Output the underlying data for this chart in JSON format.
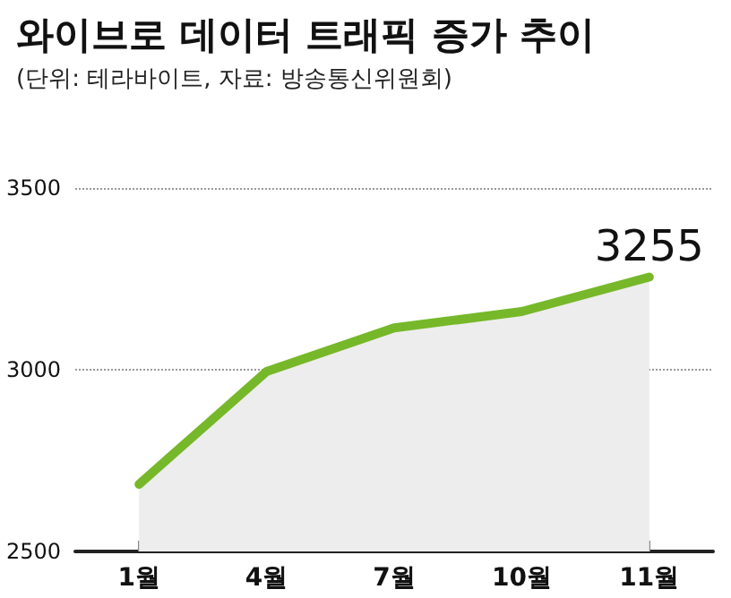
{
  "chart_data": {
    "type": "area",
    "title": "와이브로 데이터 트래픽 증가 추이",
    "subtitle": "(단위: 테라바이트, 자료: 방송통신위원회)",
    "categories": [
      "1월",
      "4월",
      "7월",
      "10월",
      "11월"
    ],
    "series": [
      {
        "color": "#76b82a",
        "values": [
          2685,
          2995,
          3115,
          3160,
          3255
        ],
        "value_labels": [
          null,
          null,
          null,
          null,
          "3255"
        ]
      }
    ],
    "ylim": [
      2500,
      3500
    ],
    "yticks": [
      2500,
      3000,
      3500
    ],
    "grid": "y",
    "marker": "none",
    "line_style": "solid"
  }
}
